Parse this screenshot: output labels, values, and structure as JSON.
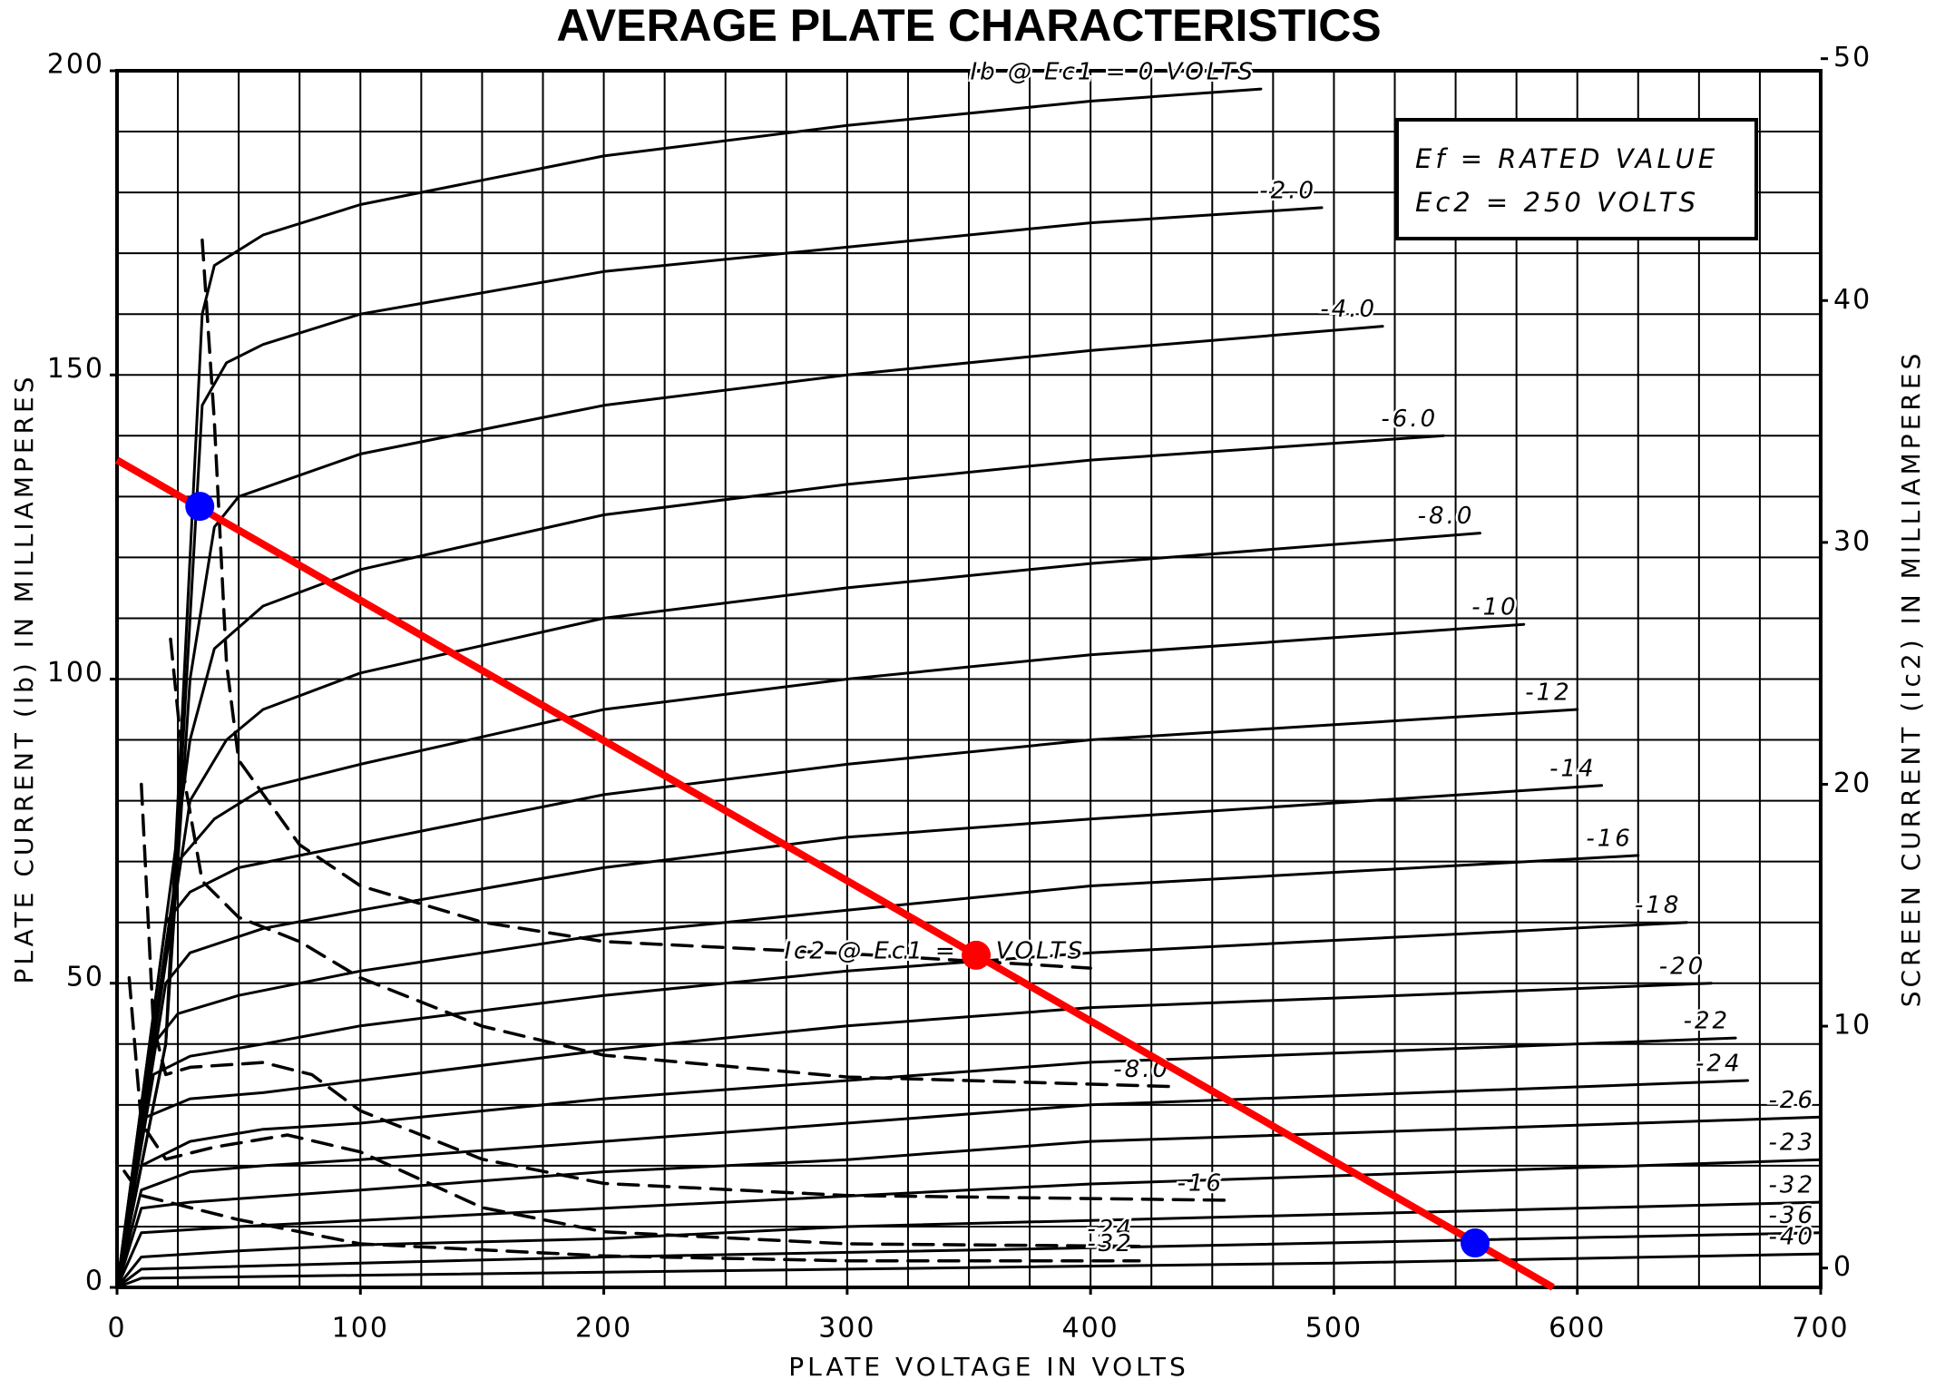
{
  "chart_data": {
    "type": "line",
    "title": "AVERAGE PLATE CHARACTERISTICS",
    "x_label": "PLATE VOLTAGE IN VOLTS",
    "y_label": "PLATE CURRENT (Ib) IN MILLIAMPERES",
    "y2_label": "SCREEN CURRENT (Ic2) IN MILLIAMPERES",
    "annotations": [
      "Ef = RATED VALUE",
      "Ec2 = 250 VOLTS"
    ],
    "xlim": [
      0,
      700
    ],
    "ylim": [
      0,
      200
    ],
    "y2lim": [
      -0.8,
      49.5
    ],
    "xticks": [
      0,
      100,
      200,
      300,
      400,
      500,
      600,
      700
    ],
    "yticks": [
      0,
      50,
      100,
      150,
      200
    ],
    "y2ticks": [
      0,
      10,
      20,
      30,
      40,
      50
    ],
    "grid": true,
    "xgrid": [
      0,
      25,
      50,
      75,
      100,
      125,
      150,
      175,
      200,
      225,
      250,
      275,
      300,
      325,
      350,
      375,
      400,
      425,
      450,
      475,
      500,
      525,
      550,
      575,
      600,
      625,
      650,
      675,
      700
    ],
    "ygrid": [
      0,
      10,
      20,
      30,
      40,
      50,
      60,
      70,
      80,
      90,
      100,
      110,
      120,
      130,
      140,
      150,
      160,
      170,
      180,
      190,
      200
    ],
    "series": [
      {
        "name": "Ib @ Ec1 = 0 VOLTS",
        "color": "#000000",
        "x": [
          0,
          20,
          30,
          35,
          40,
          60,
          100,
          150,
          200,
          300,
          400,
          470
        ],
        "values": [
          0,
          40,
          120,
          160,
          168,
          173,
          178,
          182,
          186,
          191,
          195,
          197
        ]
      },
      {
        "name": "-2.0",
        "color": "#000000",
        "x": [
          0,
          20,
          30,
          35,
          45,
          60,
          100,
          200,
          300,
          400,
          495
        ],
        "values": [
          0,
          40,
          110,
          145,
          152,
          155,
          160,
          167,
          171,
          175,
          177.5
        ]
      },
      {
        "name": "-4.0",
        "color": "#000000",
        "x": [
          0,
          20,
          30,
          40,
          50,
          100,
          200,
          300,
          400,
          520
        ],
        "values": [
          0,
          40,
          100,
          125,
          130,
          137,
          145,
          150,
          154,
          158
        ]
      },
      {
        "name": "-6.0",
        "color": "#000000",
        "x": [
          0,
          30,
          40,
          60,
          100,
          200,
          300,
          400,
          545
        ],
        "values": [
          0,
          90,
          105,
          112,
          118,
          127,
          132,
          136,
          140
        ]
      },
      {
        "name": "-8.0",
        "color": "#000000",
        "x": [
          0,
          30,
          45,
          60,
          100,
          200,
          300,
          400,
          560
        ],
        "values": [
          0,
          80,
          90,
          95,
          101,
          110,
          115,
          119,
          124
        ]
      },
      {
        "name": "-10",
        "color": "#000000",
        "x": [
          0,
          25,
          40,
          60,
          100,
          200,
          300,
          400,
          578
        ],
        "values": [
          0,
          70,
          77,
          82,
          86,
          95,
          100,
          104,
          109
        ]
      },
      {
        "name": "-12",
        "color": "#000000",
        "x": [
          0,
          20,
          30,
          50,
          100,
          200,
          300,
          400,
          600
        ],
        "values": [
          0,
          60,
          65,
          69,
          73,
          81,
          86,
          90,
          95
        ]
      },
      {
        "name": "-14",
        "color": "#000000",
        "x": [
          0,
          20,
          30,
          60,
          100,
          200,
          300,
          400,
          610
        ],
        "values": [
          0,
          50,
          55,
          59,
          62,
          69,
          74,
          77,
          82.5
        ]
      },
      {
        "name": "-16",
        "color": "#000000",
        "x": [
          0,
          15,
          25,
          50,
          100,
          200,
          300,
          400,
          625
        ],
        "values": [
          0,
          40,
          45,
          48,
          52,
          58,
          62,
          66,
          71
        ]
      },
      {
        "name": "-18",
        "color": "#000000",
        "x": [
          0,
          15,
          30,
          60,
          100,
          200,
          300,
          400,
          645
        ],
        "values": [
          0,
          35,
          38,
          40,
          43,
          48,
          52,
          55,
          60
        ]
      },
      {
        "name": "-20",
        "color": "#000000",
        "x": [
          0,
          12,
          30,
          60,
          100,
          200,
          300,
          400,
          655
        ],
        "values": [
          0,
          28,
          31,
          32,
          34,
          39,
          43,
          46,
          50
        ]
      },
      {
        "name": "-22",
        "color": "#000000",
        "x": [
          0,
          10,
          30,
          60,
          100,
          200,
          300,
          400,
          665
        ],
        "values": [
          0,
          20,
          24,
          26,
          27,
          31,
          34,
          37,
          41
        ]
      },
      {
        "name": "-24",
        "color": "#000000",
        "x": [
          0,
          10,
          30,
          60,
          100,
          200,
          300,
          400,
          670
        ],
        "values": [
          0,
          16,
          19,
          20,
          21,
          24,
          27,
          30,
          34
        ]
      },
      {
        "name": "-26",
        "color": "#000000",
        "x": [
          0,
          10,
          30,
          100,
          200,
          300,
          400,
          700
        ],
        "values": [
          0,
          13,
          14,
          16,
          19,
          21,
          24,
          28
        ]
      },
      {
        "name": "-23",
        "color": "#000000",
        "x": [
          0,
          10,
          50,
          100,
          200,
          300,
          400,
          700
        ],
        "values": [
          0,
          9,
          10,
          11,
          13,
          15,
          17,
          21
        ]
      },
      {
        "name": "-32",
        "color": "#000000",
        "x": [
          0,
          10,
          50,
          100,
          200,
          300,
          400,
          700
        ],
        "values": [
          0,
          5,
          6,
          7,
          8,
          10,
          11,
          14
        ]
      },
      {
        "name": "-36",
        "color": "#000000",
        "x": [
          0,
          10,
          100,
          200,
          400,
          700
        ],
        "values": [
          0,
          3,
          4,
          5,
          6.5,
          9
        ]
      },
      {
        "name": "-40",
        "color": "#000000",
        "x": [
          0,
          10,
          100,
          300,
          500,
          700
        ],
        "values": [
          0,
          1.5,
          2,
          3,
          4,
          5.5
        ]
      },
      {
        "name": "Ic2 @ Ec1 = 0 VOLTS",
        "color": "#000000",
        "axis": "y2",
        "dashed": true,
        "x": [
          35,
          40,
          45,
          50,
          75,
          100,
          150,
          200,
          300,
          400
        ],
        "values": [
          42.5,
          35,
          25,
          21,
          17.5,
          15.8,
          14.3,
          13.5,
          13,
          12.4
        ]
      },
      {
        "name": "-8.0",
        "color": "#000000",
        "axis": "y2",
        "dashed": true,
        "x": [
          22,
          28,
          35,
          50,
          75,
          100,
          150,
          200,
          300,
          435
        ],
        "values": [
          26,
          20,
          16,
          14.5,
          13.5,
          12,
          10,
          8.8,
          7.9,
          7.5
        ]
      },
      {
        "name": "-16",
        "color": "#000000",
        "axis": "y2",
        "dashed": true,
        "x": [
          10,
          15,
          20,
          30,
          60,
          80,
          100,
          150,
          200,
          300,
          457
        ],
        "values": [
          20,
          10,
          8,
          8.3,
          8.5,
          8,
          6.5,
          4.5,
          3.5,
          3,
          2.8
        ]
      },
      {
        "name": "-24",
        "color": "#000000",
        "axis": "y2",
        "dashed": true,
        "x": [
          5,
          10,
          20,
          40,
          70,
          100,
          150,
          200,
          300,
          420
        ],
        "values": [
          12,
          6,
          4.5,
          5,
          5.5,
          4.8,
          2.5,
          1.5,
          1,
          0.9
        ]
      },
      {
        "name": "-32",
        "color": "#000000",
        "axis": "y2",
        "dashed": true,
        "x": [
          3,
          10,
          50,
          100,
          200,
          300,
          420
        ],
        "values": [
          4,
          3,
          2,
          1,
          0.5,
          0.3,
          0.3
        ]
      }
    ],
    "load_line": {
      "color": "#ff0000",
      "x": [
        0,
        590
      ],
      "values": [
        136,
        0
      ]
    },
    "points": {
      "x": [
        34,
        353,
        558
      ],
      "values": [
        128.4,
        54.6,
        7.3
      ],
      "colors": [
        "#0000ff",
        "#ff0000",
        "#0000ff"
      ]
    }
  }
}
